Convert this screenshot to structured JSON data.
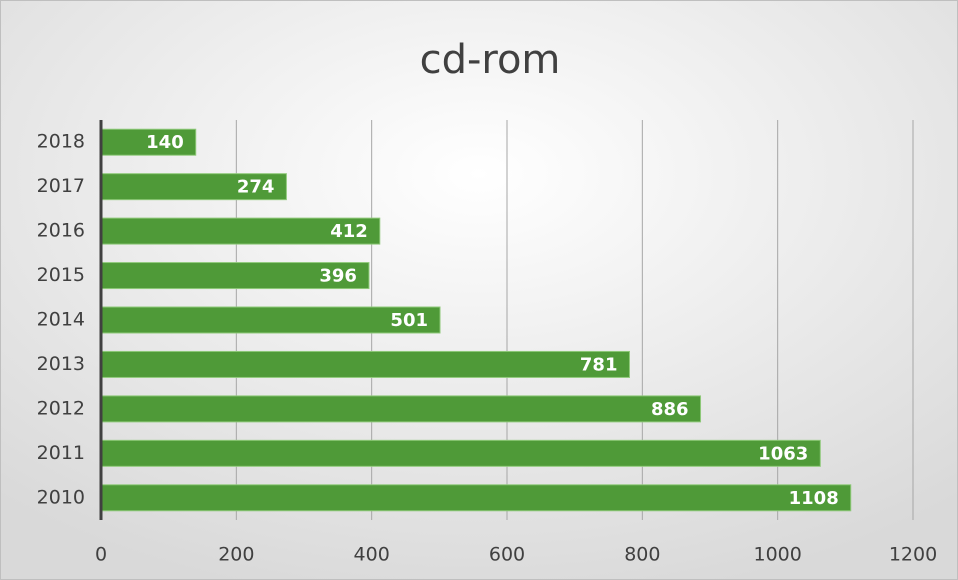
{
  "chart_data": {
    "type": "hbar",
    "title": "cd-rom",
    "categories": [
      "2018",
      "2017",
      "2016",
      "2015",
      "2014",
      "2013",
      "2012",
      "2011",
      "2010"
    ],
    "values": [
      140,
      274,
      412,
      396,
      501,
      781,
      886,
      1063,
      1108
    ],
    "color": "#4f9a38",
    "xlim": [
      0,
      1200
    ],
    "xticks": [
      0,
      200,
      400,
      600,
      800,
      1000,
      1200
    ],
    "grid": true
  }
}
